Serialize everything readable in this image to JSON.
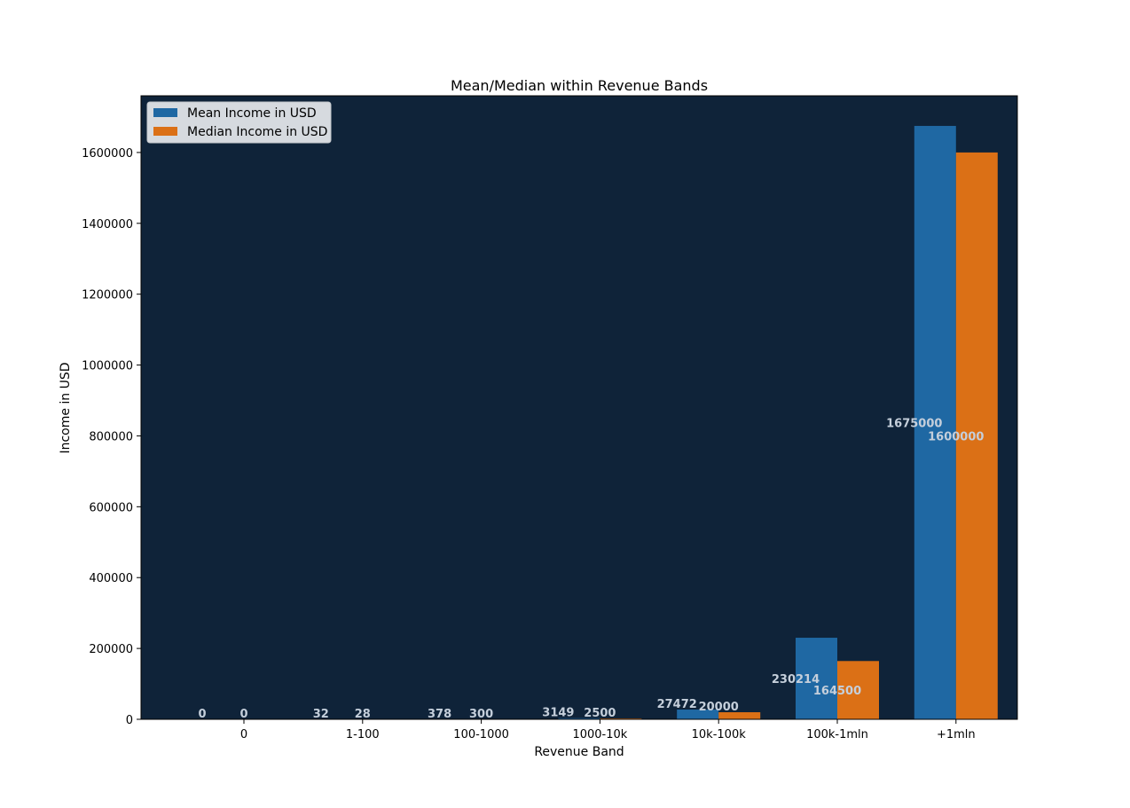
{
  "chart_data": {
    "type": "bar",
    "title": "Mean/Median within Revenue Bands",
    "xlabel": "Revenue Band",
    "ylabel": "Income in USD",
    "categories": [
      "0",
      "1-100",
      "100-1000",
      "1000-10k",
      "10k-100k",
      "100k-1mln",
      "+1mln"
    ],
    "series": [
      {
        "name": "Mean Income in USD",
        "values": [
          0,
          32,
          378,
          3149,
          27472,
          230214,
          1675000
        ],
        "color": "#1f68a3"
      },
      {
        "name": "Median Income in USD",
        "values": [
          0,
          28,
          300,
          2500,
          20000,
          164500,
          1600000
        ],
        "color": "#db7016"
      }
    ],
    "ylim": [
      0,
      1760000
    ],
    "yticks": [
      0,
      200000,
      400000,
      600000,
      800000,
      1000000,
      1200000,
      1400000,
      1600000
    ],
    "plot_background": "#0f2339",
    "data_label_color": "#c5cfdb",
    "legend_position": "upper-left",
    "grid": false
  }
}
